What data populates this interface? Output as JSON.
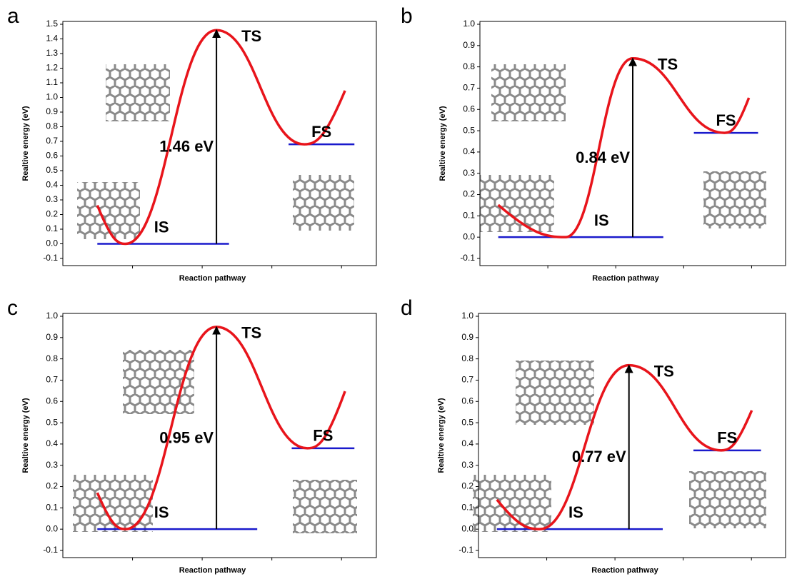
{
  "chart_data": [
    {
      "type": "line",
      "panel": "a",
      "ylabel": "Realtive energy (eV)",
      "xlabel": "Reaction pathway",
      "categories": [
        "IS",
        "TS",
        "FS"
      ],
      "values": [
        0,
        1.46,
        0.68
      ],
      "value_labels": [
        null,
        "1.46 eV",
        null
      ],
      "ylim": [
        -0.1,
        1.5
      ],
      "yticks": [
        -0.1,
        {
          "value": 0,
          "label": "0.0"
        },
        0.1,
        0.2,
        0.3,
        0.4,
        0.5,
        0.6,
        0.7,
        0.8,
        0.9,
        {
          "value": 1,
          "label": "1.0"
        },
        1.1,
        1.2,
        1.3,
        1.4,
        1.5
      ],
      "color": "#e8141b",
      "level_color": "#1a1acc"
    },
    {
      "type": "line",
      "panel": "b",
      "ylabel": "Realtive energy (eV)",
      "xlabel": "Reaction pathway",
      "categories": [
        "IS",
        "TS",
        "FS"
      ],
      "values": [
        0,
        0.84,
        0.49
      ],
      "value_labels": [
        null,
        "0.84 eV",
        null
      ],
      "ylim": [
        -0.1,
        1.0
      ],
      "yticks": [
        -0.1,
        {
          "value": 0,
          "label": "0.0"
        },
        0.1,
        0.2,
        0.3,
        0.4,
        0.5,
        0.6,
        0.7,
        0.8,
        0.9,
        {
          "value": 1,
          "label": "1.0"
        }
      ],
      "color": "#e8141b",
      "level_color": "#1a1acc"
    },
    {
      "type": "line",
      "panel": "c",
      "ylabel": "Realtive energy (eV)",
      "xlabel": "Reaction pathway",
      "categories": [
        "IS",
        "TS",
        "FS"
      ],
      "values": [
        0,
        0.95,
        0.38
      ],
      "value_labels": [
        null,
        "0.95 eV",
        null
      ],
      "ylim": [
        -0.1,
        1.0
      ],
      "yticks": [
        -0.1,
        {
          "value": 0,
          "label": "0.0"
        },
        0.1,
        0.2,
        0.3,
        0.4,
        0.5,
        0.6,
        0.7,
        0.8,
        0.9,
        {
          "value": 1,
          "label": "1.0"
        }
      ],
      "color": "#e8141b",
      "level_color": "#1a1acc"
    },
    {
      "type": "line",
      "panel": "d",
      "ylabel": "Realtive energy (eV)",
      "xlabel": "Reaction pathway",
      "categories": [
        "IS",
        "TS",
        "FS"
      ],
      "values": [
        0,
        0.77,
        0.37
      ],
      "value_labels": [
        null,
        "0.77 eV",
        null
      ],
      "ylim": [
        -0.1,
        1.0
      ],
      "yticks": [
        -0.1,
        {
          "value": 0,
          "label": "0.0"
        },
        0.1,
        0.2,
        0.3,
        0.4,
        0.5,
        0.6,
        0.7,
        0.8,
        0.9,
        {
          "value": 1,
          "label": "1.0"
        }
      ],
      "color": "#e8141b",
      "level_color": "#1a1acc"
    }
  ]
}
